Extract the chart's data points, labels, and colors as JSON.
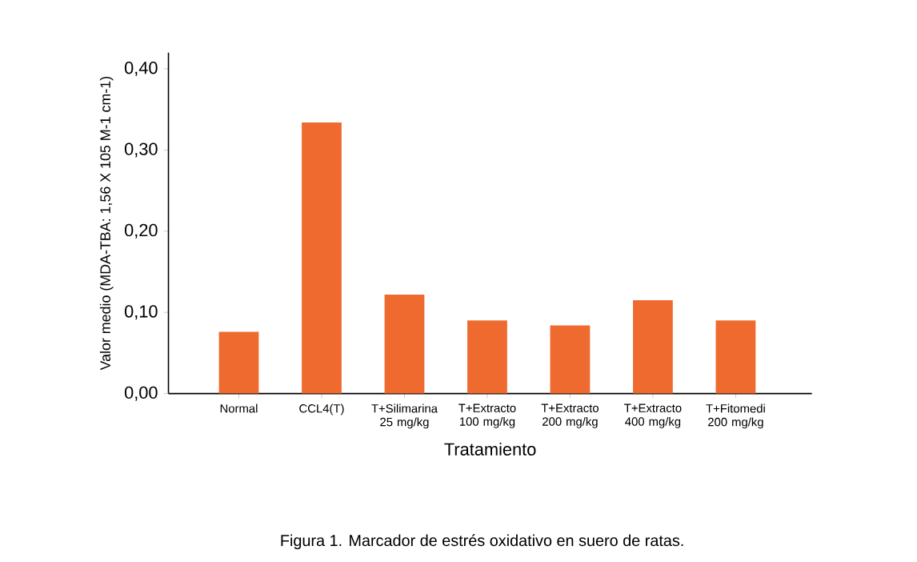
{
  "chart_data": {
    "type": "bar",
    "categories": [
      "Normal",
      "CCL4(T)",
      "T+Silimarina 25 mg/kg",
      "T+Extracto 100 mg/kg",
      "T+Extracto 200 mg/kg",
      "T+Extracto 400 mg/kg",
      "T+Fitomedi 200 mg/kg"
    ],
    "values": [
      0.076,
      0.334,
      0.122,
      0.09,
      0.084,
      0.115,
      0.09
    ],
    "color": "#ee6a2e",
    "xlabel": "Tratamiento",
    "ylabel": "Valor medio (MDA-TBA: 1,56 X 105 M-1 cm-1)",
    "ylim": [
      0,
      0.42
    ],
    "yticks": [
      {
        "value": 0,
        "label": "0,00"
      },
      {
        "value": 0.1,
        "label": "0,10"
      },
      {
        "value": 0.2,
        "label": "0,20"
      },
      {
        "value": 0.3,
        "label": "0,30"
      },
      {
        "value": 0.4,
        "label": "0,40"
      }
    ],
    "grid": false,
    "annotations": [
      "Figura 1. Marcador de estrés oxidativo en suero de ratas."
    ]
  }
}
